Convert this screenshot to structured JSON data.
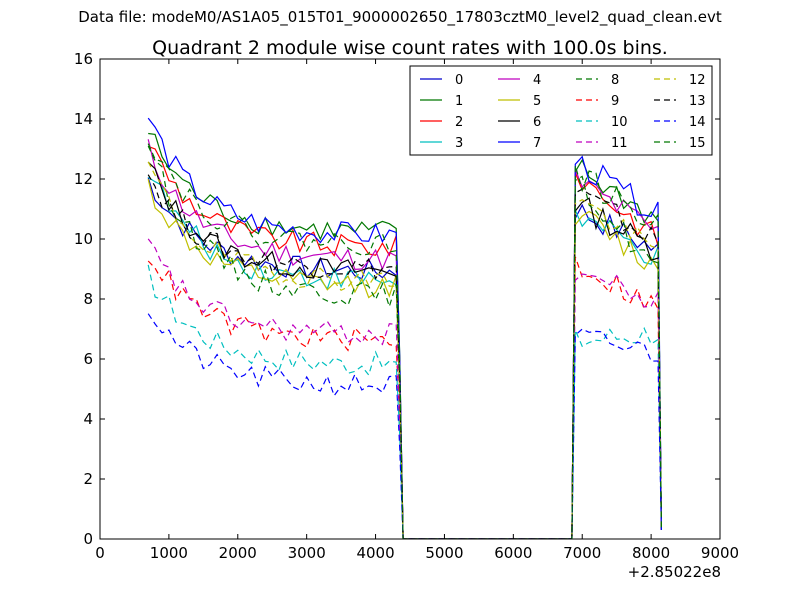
{
  "suptitle": "Data file: modeM0/AS1A05_015T01_9000002650_17803cztM0_level2_quad_clean.evt",
  "chart_data": {
    "type": "line",
    "title": "Quadrant 2 module wise count rates with 100.0s bins.",
    "xlabel": "",
    "ylabel": "",
    "x_offset_label": "+2.85022e8",
    "xlim": [
      0,
      9000
    ],
    "ylim": [
      0,
      16
    ],
    "x_ticks": [
      0,
      1000,
      2000,
      3000,
      4000,
      5000,
      6000,
      7000,
      8000,
      9000
    ],
    "y_ticks": [
      0,
      2,
      4,
      6,
      8,
      10,
      12,
      14,
      16
    ],
    "grid": false,
    "legend_placement": "top-right",
    "segments": [
      {
        "x_start": 700,
        "x_end": 4300,
        "step": 100
      },
      {
        "x_start": 6900,
        "x_end": 8100,
        "step": 100
      }
    ],
    "series": [
      {
        "name": "0",
        "color": "#0000cc",
        "dash": "solid",
        "start": 12.0,
        "plateau": 8.9,
        "second_start": 11.0,
        "second_end": 9.6
      },
      {
        "name": "1",
        "color": "#007700",
        "dash": "solid",
        "start": 13.6,
        "plateau": 10.2,
        "second_start": 12.4,
        "second_end": 10.6
      },
      {
        "name": "2",
        "color": "#ff0000",
        "dash": "solid",
        "start": 13.3,
        "plateau": 9.7,
        "second_start": 12.2,
        "second_end": 10.0
      },
      {
        "name": "3",
        "color": "#00bfbf",
        "dash": "solid",
        "start": 12.4,
        "plateau": 8.6,
        "second_start": 10.8,
        "second_end": 9.3
      },
      {
        "name": "4",
        "color": "#bf00bf",
        "dash": "solid",
        "start": 13.0,
        "plateau": 9.3,
        "second_start": 12.0,
        "second_end": 10.2
      },
      {
        "name": "5",
        "color": "#bfbf00",
        "dash": "solid",
        "start": 11.8,
        "plateau": 8.4,
        "second_start": 10.9,
        "second_end": 9.0
      },
      {
        "name": "6",
        "color": "#000000",
        "dash": "solid",
        "start": 12.5,
        "plateau": 8.9,
        "second_start": 11.2,
        "second_end": 9.6
      },
      {
        "name": "7",
        "color": "#0000ff",
        "dash": "solid",
        "start": 14.1,
        "plateau": 10.1,
        "second_start": 12.6,
        "second_end": 10.8
      },
      {
        "name": "8",
        "color": "#007700",
        "dash": "dashed",
        "start": 13.3,
        "plateau": 8.1,
        "second_start": 11.9,
        "second_end": 9.0
      },
      {
        "name": "9",
        "color": "#ff0000",
        "dash": "dashed",
        "start": 9.6,
        "plateau": 6.6,
        "second_start": 9.2,
        "second_end": 7.7
      },
      {
        "name": "10",
        "color": "#00bfbf",
        "dash": "dashed",
        "start": 8.8,
        "plateau": 5.8,
        "second_start": 6.6,
        "second_end": 6.9
      },
      {
        "name": "11",
        "color": "#bf00bf",
        "dash": "dashed",
        "start": 9.8,
        "plateau": 6.8,
        "second_start": 9.0,
        "second_end": 7.8
      },
      {
        "name": "12",
        "color": "#bfbf00",
        "dash": "dashed",
        "start": 12.5,
        "plateau": 8.6,
        "second_start": 11.4,
        "second_end": 9.5
      },
      {
        "name": "13",
        "color": "#000000",
        "dash": "dashed",
        "start": 12.2,
        "plateau": 9.0,
        "second_start": 11.6,
        "second_end": 9.9
      },
      {
        "name": "14",
        "color": "#0000ff",
        "dash": "dashed",
        "start": 7.7,
        "plateau": 5.1,
        "second_start": 6.7,
        "second_end": 6.2
      },
      {
        "name": "15",
        "color": "#007700",
        "dash": "dashed",
        "start": 13.5,
        "plateau": 9.8,
        "second_start": 12.2,
        "second_end": 10.4
      }
    ]
  }
}
